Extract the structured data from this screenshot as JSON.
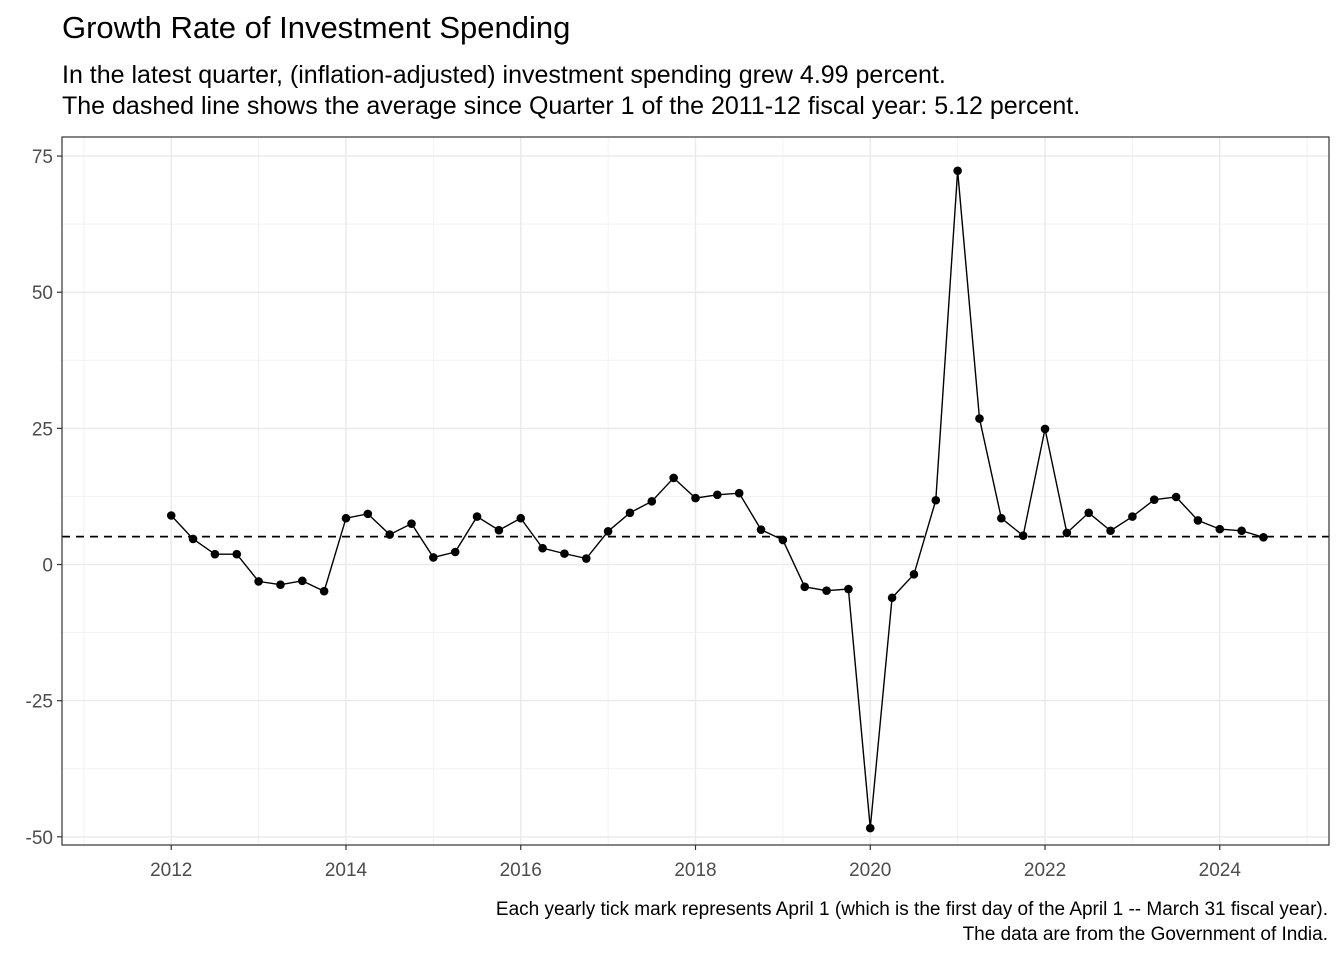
{
  "title": "Growth Rate of Investment Spending",
  "subtitle": {
    "line1": "In the latest quarter, (inflation-adjusted) investment spending grew 4.99 percent.",
    "line2": "The dashed line shows the average since Quarter 1 of the 2011-12 fiscal year: 5.12 percent."
  },
  "caption": {
    "line1": "Each yearly tick mark represents April 1 (which is the first day of the April 1 -- March 31 fiscal year).",
    "line2": "The data are from the Government of India."
  },
  "chart_data": {
    "type": "line",
    "title": "Growth Rate of Investment Spending",
    "xlabel": "",
    "ylabel": "",
    "x_ticks": [
      "2012",
      "2014",
      "2016",
      "2018",
      "2020",
      "2022",
      "2024"
    ],
    "y_ticks": [
      "75",
      "50",
      "25",
      "0",
      "-25",
      "-50"
    ],
    "ylim": [
      -51.5,
      78.5
    ],
    "xlim": [
      2010.75,
      2025.25
    ],
    "grid": true,
    "average_line": {
      "value": 5.12,
      "style": "dashed"
    },
    "series": [
      {
        "x": [
          2012.0,
          2012.25,
          2012.5,
          2012.75,
          2013.0,
          2013.25,
          2013.5,
          2013.75,
          2014.0,
          2014.25,
          2014.5,
          2014.75,
          2015.0,
          2015.25,
          2015.5,
          2015.75,
          2016.0,
          2016.25,
          2016.5,
          2016.75,
          2017.0,
          2017.25,
          2017.5,
          2017.75,
          2018.0,
          2018.25,
          2018.5,
          2018.75,
          2019.0,
          2019.25,
          2019.5,
          2019.75,
          2020.0,
          2020.25,
          2020.5,
          2020.75,
          2021.0,
          2021.25,
          2021.5,
          2021.75,
          2022.0,
          2022.25,
          2022.5,
          2022.75,
          2023.0,
          2023.25,
          2023.5,
          2023.75,
          2024.0,
          2024.25,
          2024.5
        ],
        "y": [
          9.0,
          4.7,
          1.9,
          1.9,
          -3.1,
          -3.7,
          -3.0,
          -4.9,
          8.5,
          9.3,
          5.5,
          7.5,
          1.3,
          2.3,
          8.8,
          6.3,
          8.5,
          3.0,
          2.0,
          1.1,
          6.1,
          9.5,
          11.6,
          15.9,
          12.2,
          12.8,
          13.1,
          6.4,
          4.5,
          -4.1,
          -4.8,
          -4.5,
          -48.4,
          -6.1,
          -1.8,
          11.8,
          72.3,
          26.8,
          8.5,
          5.3,
          24.9,
          5.8,
          9.5,
          6.2,
          8.8,
          11.9,
          12.4,
          8.1,
          6.5,
          6.2,
          4.99
        ]
      }
    ],
    "colors": {
      "line": "#000000",
      "grid": "#ebebeb",
      "panel_border": "#333333",
      "tick_text": "#4d4d4d"
    }
  }
}
